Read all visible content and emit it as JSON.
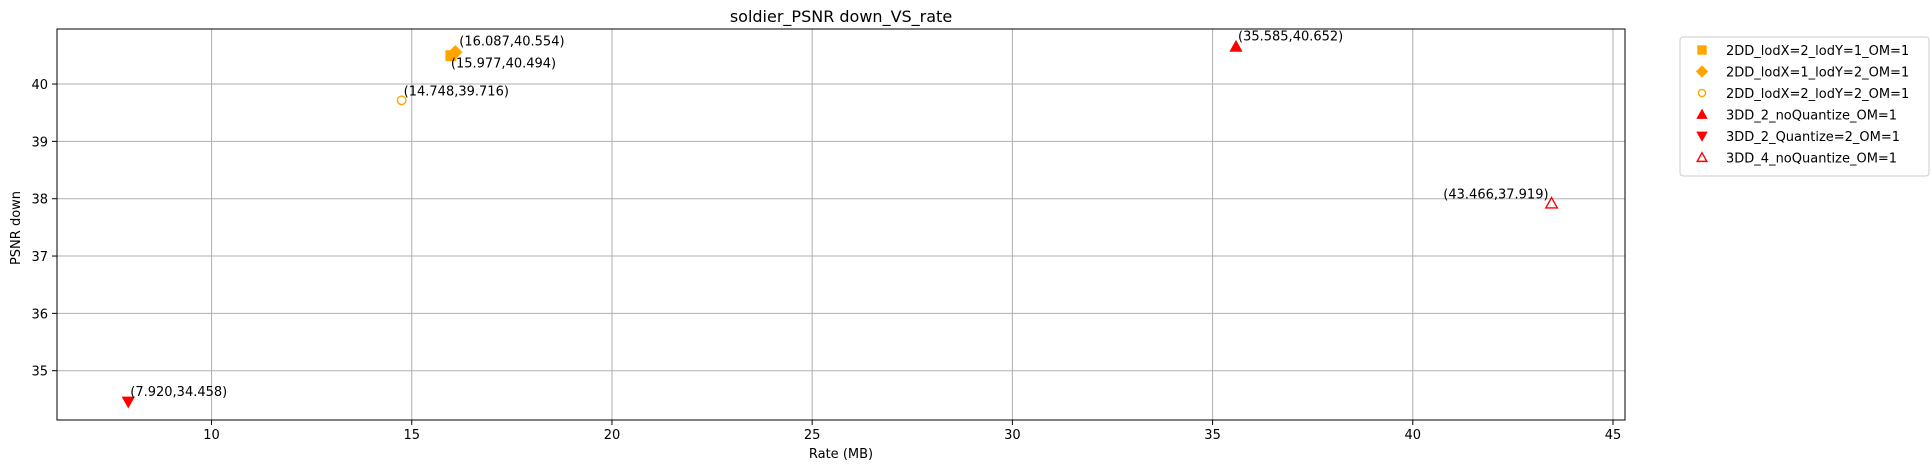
{
  "chart_data": {
    "type": "scatter",
    "title": "soldier_PSNR down_VS_rate",
    "xlabel": "Rate (MB)",
    "ylabel": "PSNR down",
    "xlim": [
      6.14,
      45.3
    ],
    "ylim": [
      34.14,
      40.96
    ],
    "xticks": [
      10,
      15,
      20,
      25,
      30,
      35,
      40,
      45
    ],
    "yticks": [
      35,
      36,
      37,
      38,
      39,
      40
    ],
    "grid": true,
    "legend_position": "outside-right-top",
    "series": [
      {
        "name": "2DD_lodX=2_lodY=1_OM=1",
        "marker": "square",
        "filled": true,
        "color": "#FFA500",
        "points": [
          {
            "x": 15.977,
            "y": 40.494,
            "label": "(15.977,40.494)"
          }
        ]
      },
      {
        "name": "2DD_lodX=1_lodY=2_OM=1",
        "marker": "diamond",
        "filled": true,
        "color": "#FFA500",
        "points": [
          {
            "x": 16.087,
            "y": 40.554,
            "label": "(16.087,40.554)"
          }
        ]
      },
      {
        "name": "2DD_lodX=2_lodY=2_OM=1",
        "marker": "circle",
        "filled": false,
        "color": "#FFA500",
        "points": [
          {
            "x": 14.748,
            "y": 39.716,
            "label": "(14.748,39.716)"
          }
        ]
      },
      {
        "name": "3DD_2_noQuantize_OM=1",
        "marker": "triangle-up",
        "filled": true,
        "color": "#FF0000",
        "points": [
          {
            "x": 35.585,
            "y": 40.652,
            "label": "(35.585,40.652)"
          }
        ]
      },
      {
        "name": "3DD_2_Quantize=2_OM=1",
        "marker": "triangle-down",
        "filled": true,
        "color": "#FF0000",
        "points": [
          {
            "x": 7.92,
            "y": 34.458,
            "label": "(7.920,34.458)"
          }
        ]
      },
      {
        "name": "3DD_4_noQuantize_OM=1",
        "marker": "triangle-up",
        "filled": false,
        "color": "#FF0000",
        "points": [
          {
            "x": 43.466,
            "y": 37.919,
            "label": "(43.466,37.919)"
          }
        ]
      }
    ]
  }
}
